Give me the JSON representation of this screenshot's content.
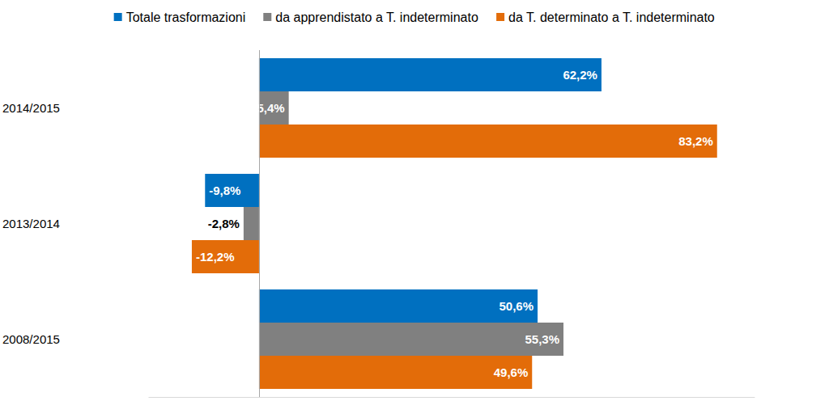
{
  "chart_data": {
    "type": "bar",
    "orientation": "horizontal",
    "categories": [
      "2014/2015",
      "2013/2014",
      "2008/2015"
    ],
    "series": [
      {
        "name": "Totale trasformazioni",
        "color": "#0070C0",
        "values": [
          62.2,
          -9.8,
          50.6
        ],
        "value_labels": [
          "62,2%",
          "-9,8%",
          "50,6%"
        ]
      },
      {
        "name": "da apprendistato a T. indeterminato",
        "color": "#808080",
        "values": [
          5.4,
          -2.8,
          55.3
        ],
        "value_labels": [
          "5,4%",
          "-2,8%",
          "55,3%"
        ]
      },
      {
        "name": "da T. determinato a T. indeterminato",
        "color": "#E36C09",
        "values": [
          83.2,
          -12.2,
          49.6
        ],
        "value_labels": [
          "83,2%",
          "-12,2%",
          "49,6%"
        ]
      }
    ],
    "xlim": [
      -20,
      90
    ],
    "data_labels": true,
    "tick_labels": "y",
    "grid": false,
    "legend": "top"
  }
}
